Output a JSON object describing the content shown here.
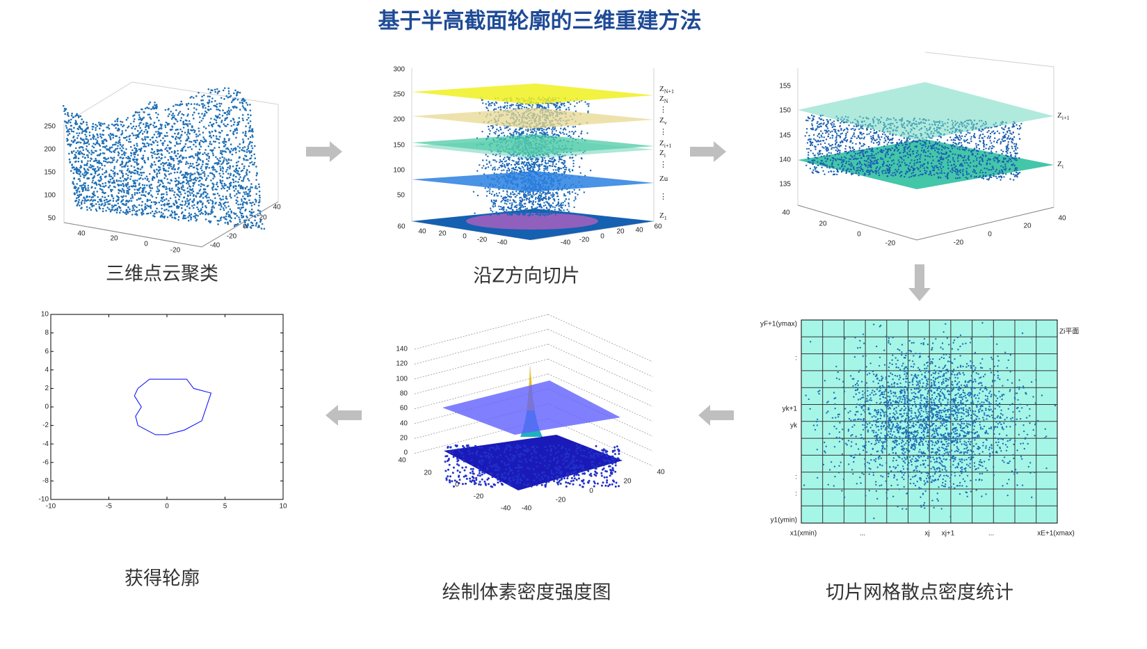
{
  "title": "基于半高截面轮廓的三维重建方法",
  "panels": [
    {
      "caption": "三维点云聚类",
      "z_ticks": [
        250,
        200,
        150,
        100,
        50
      ],
      "x_ticks": [
        40,
        20,
        0,
        -20
      ],
      "y_ticks": [
        40,
        20,
        0,
        -20,
        -40
      ]
    },
    {
      "caption": "沿Z方向切片",
      "z_ticks": [
        300,
        250,
        200,
        150,
        100,
        50
      ],
      "x_ticks": [
        60,
        40,
        20,
        0,
        -20,
        -40
      ],
      "y_ticks": [
        -40,
        -20,
        0,
        20,
        40,
        60
      ],
      "plane_labels": [
        {
          "text": "Z",
          "sub": "N+1"
        },
        {
          "text": "Z",
          "sub": "N"
        },
        {
          "text": "⋮"
        },
        {
          "text": "Z",
          "sub": "v"
        },
        {
          "text": "⋮"
        },
        {
          "text": "Z",
          "sub": "i+1"
        },
        {
          "text": "Z",
          "sub": "i"
        },
        {
          "text": "⋮"
        },
        {
          "text": "Zu"
        },
        {
          "text": "⋮"
        },
        {
          "text": "Z",
          "sub": "1"
        }
      ]
    },
    {
      "z_ticks": [
        155,
        150,
        145,
        140,
        135
      ],
      "x_ticks": [
        40,
        20,
        0,
        -20
      ],
      "y_ticks": [
        -20,
        0,
        20,
        40
      ],
      "plane_labels": [
        {
          "text": "Z",
          "sub": "i+1"
        },
        {
          "text": "Z",
          "sub": "i"
        }
      ]
    },
    {
      "caption": "切片网格散点密度统计",
      "y_labels": [
        "yF+1(ymax)",
        ":",
        "yk+1",
        "yk",
        ":",
        ":",
        "y1(ymin)"
      ],
      "x_labels": [
        "x1(xmin)",
        "...",
        "xj",
        "xj+1",
        "...",
        "xE+1(xmax)"
      ],
      "plane_label": "Zi平面"
    },
    {
      "caption": "绘制体素密度强度图",
      "z_ticks": [
        140,
        120,
        100,
        80,
        60,
        40,
        20,
        0
      ],
      "x_ticks": [
        40,
        20,
        0,
        -20,
        -40
      ],
      "y_ticks": [
        -40,
        -20,
        0,
        20,
        40
      ]
    },
    {
      "caption": "获得轮廓"
    }
  ],
  "chart_data": {
    "type": "line",
    "color": "#0000ff",
    "x": [
      -2.5,
      -1.5,
      1.7,
      2.3,
      3.8,
      3,
      1.5,
      0,
      -1,
      -2.5,
      -2.7,
      -2.2,
      -2.8,
      -2.5
    ],
    "y": [
      2,
      3,
      3,
      2,
      1.5,
      -1.5,
      -2.5,
      -3,
      -3,
      -2,
      -1,
      0,
      1.2,
      2
    ],
    "xlim": [
      -10,
      10
    ],
    "ylim": [
      -10,
      10
    ],
    "xticks": [
      -10,
      -5,
      0,
      5,
      10
    ],
    "yticks": [
      10,
      8,
      6,
      4,
      2,
      0,
      -2,
      -4,
      -6,
      -8,
      -10
    ]
  }
}
